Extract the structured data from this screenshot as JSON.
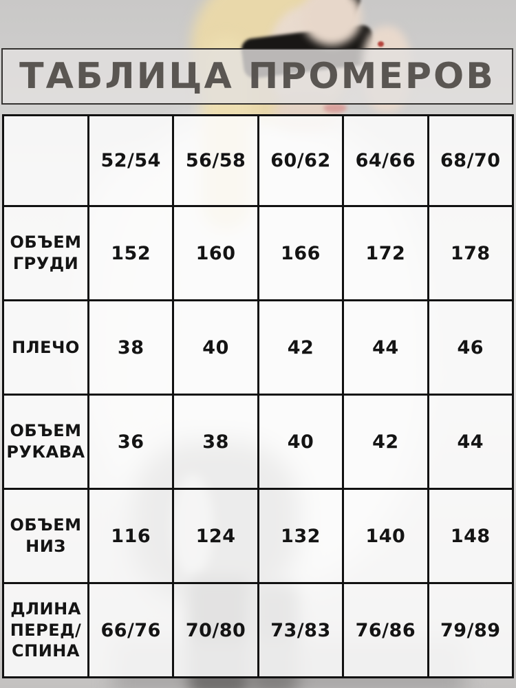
{
  "title": "ТАБЛИЦА ПРОМЕРОВ",
  "table": {
    "sizes": [
      "52/54",
      "56/58",
      "60/62",
      "64/66",
      "68/70"
    ],
    "rows": [
      {
        "label_lines": [
          "ОБЪЕМ",
          "ГРУДИ"
        ],
        "values": [
          "152",
          "160",
          "166",
          "172",
          "178"
        ]
      },
      {
        "label_lines": [
          "ПЛЕЧО"
        ],
        "values": [
          "38",
          "40",
          "42",
          "44",
          "46"
        ]
      },
      {
        "label_lines": [
          "ОБЪЕМ",
          "РУКАВА"
        ],
        "values": [
          "36",
          "38",
          "40",
          "42",
          "44"
        ]
      },
      {
        "label_lines": [
          "ОБЪЕМ",
          "НИЗ"
        ],
        "values": [
          "116",
          "124",
          "132",
          "140",
          "148"
        ]
      },
      {
        "label_lines": [
          "ДЛИНА",
          "ПЕРЕД/",
          "СПИНА"
        ],
        "values": [
          "66/76",
          "70/80",
          "73/83",
          "76/86",
          "79/89"
        ]
      }
    ]
  },
  "colors": {
    "border": "#111111",
    "banner_border": "#343230",
    "title_text": "#524e4b",
    "cell_text": "#141414",
    "cell_background": "#f1f0ef",
    "photo_background": "#c9c8c7"
  }
}
